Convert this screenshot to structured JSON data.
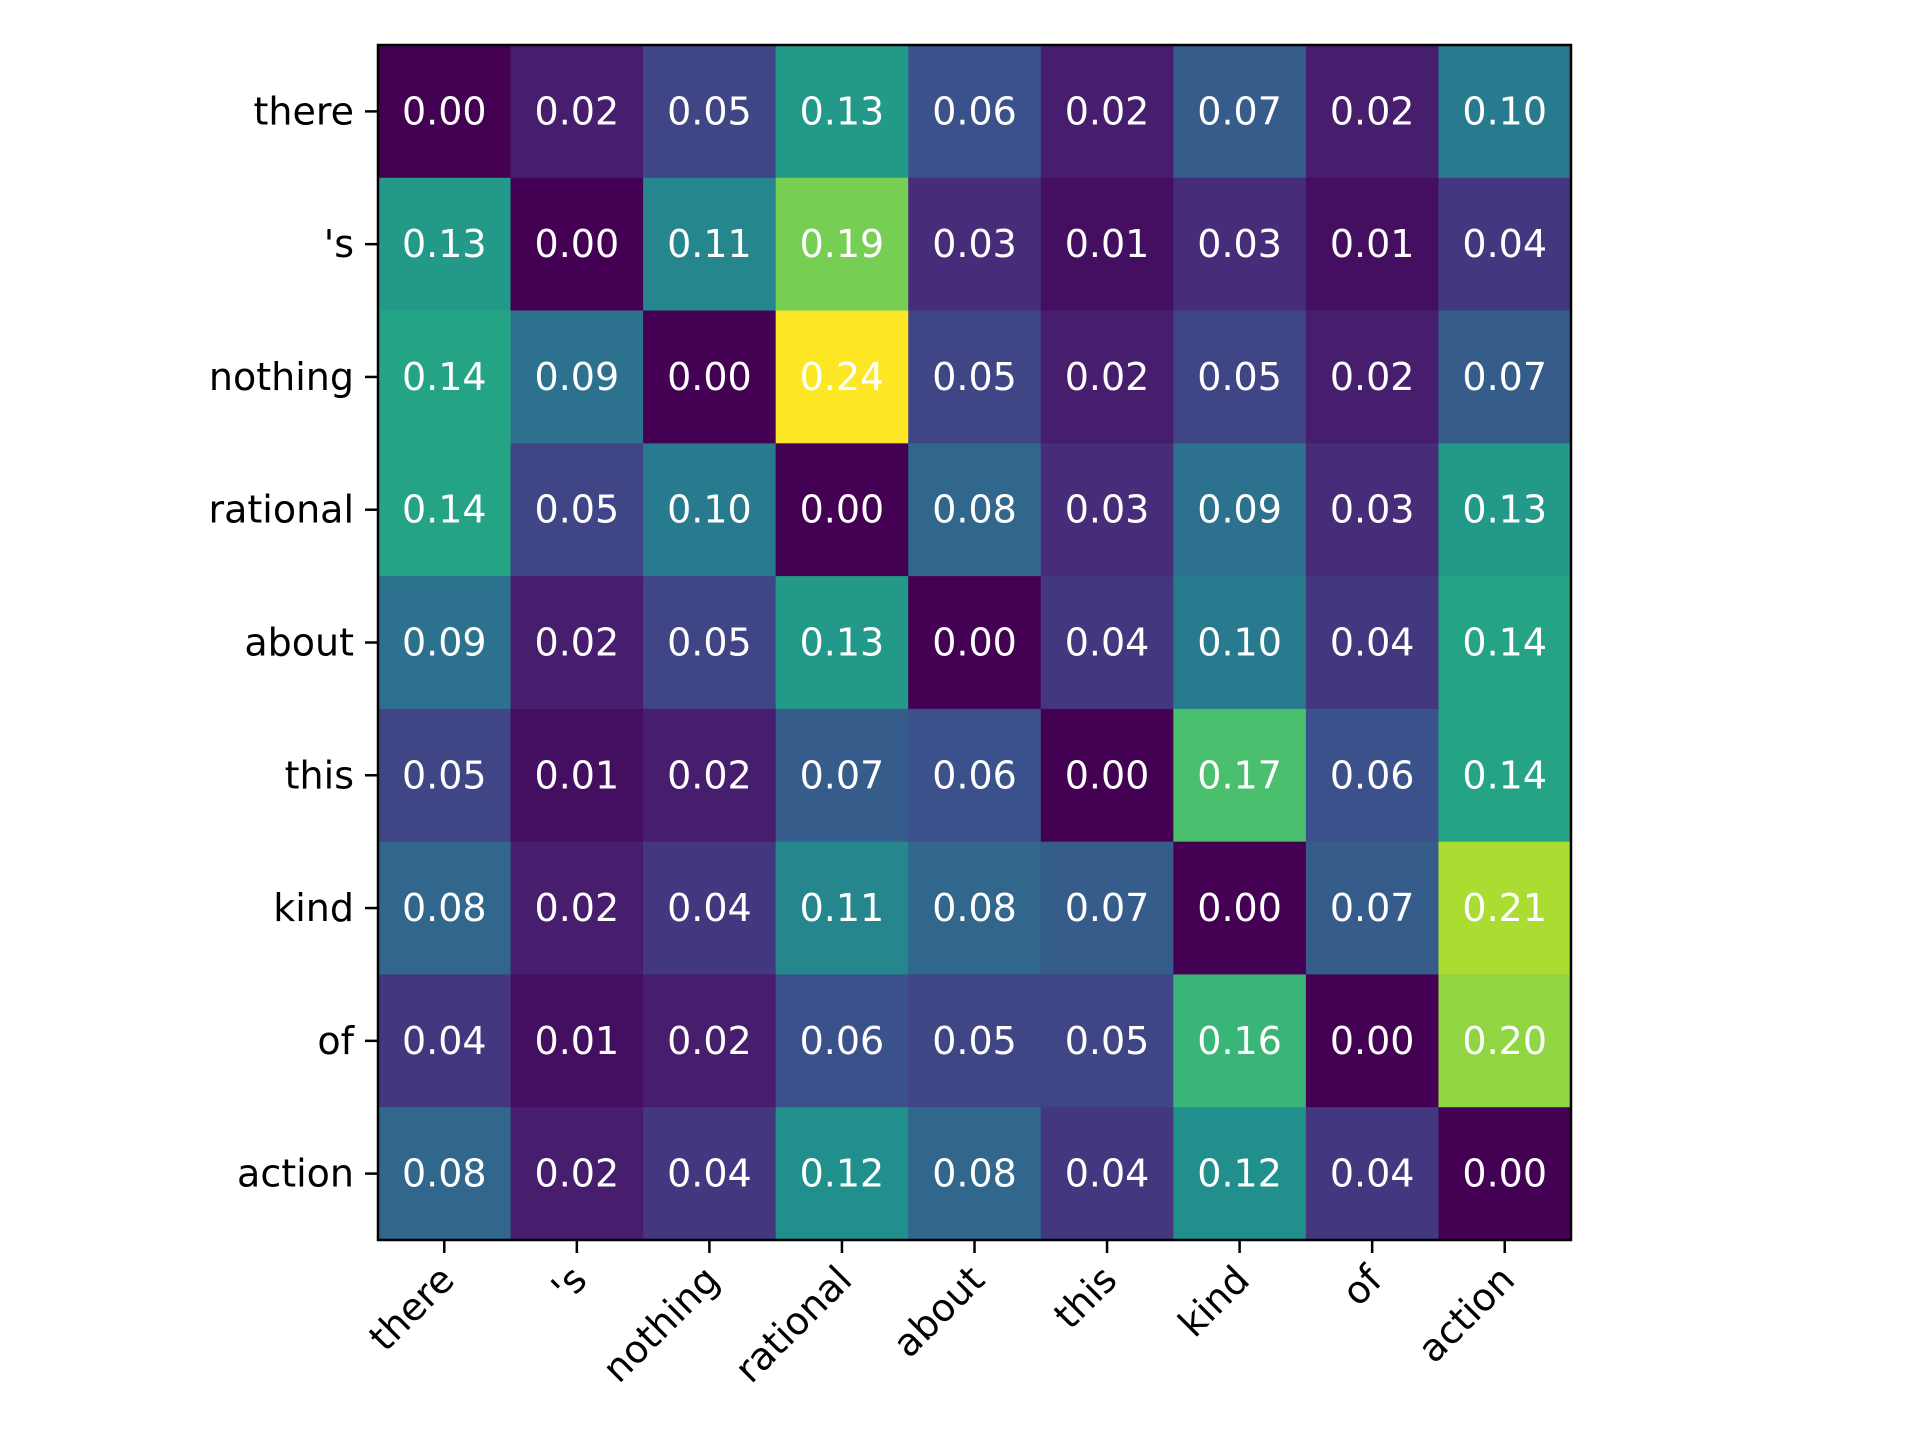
{
  "chart_data": {
    "type": "heatmap",
    "title": "",
    "xlabel": "",
    "ylabel": "",
    "colormap": "viridis",
    "vmin": 0.0,
    "vmax": 0.24,
    "grid": false,
    "x_categories": [
      "there",
      "'s",
      "nothing",
      "rational",
      "about",
      "this",
      "kind",
      "of",
      "action"
    ],
    "y_categories": [
      "there",
      "'s",
      "nothing",
      "rational",
      "about",
      "this",
      "kind",
      "of",
      "action"
    ],
    "values": [
      [
        0.0,
        0.02,
        0.05,
        0.13,
        0.06,
        0.02,
        0.07,
        0.02,
        0.1
      ],
      [
        0.13,
        0.0,
        0.11,
        0.19,
        0.03,
        0.01,
        0.03,
        0.01,
        0.04
      ],
      [
        0.14,
        0.09,
        0.0,
        0.24,
        0.05,
        0.02,
        0.05,
        0.02,
        0.07
      ],
      [
        0.14,
        0.05,
        0.1,
        0.0,
        0.08,
        0.03,
        0.09,
        0.03,
        0.13
      ],
      [
        0.09,
        0.02,
        0.05,
        0.13,
        0.0,
        0.04,
        0.1,
        0.04,
        0.14
      ],
      [
        0.05,
        0.01,
        0.02,
        0.07,
        0.06,
        0.0,
        0.17,
        0.06,
        0.14
      ],
      [
        0.08,
        0.02,
        0.04,
        0.11,
        0.08,
        0.07,
        0.0,
        0.07,
        0.21
      ],
      [
        0.04,
        0.01,
        0.02,
        0.06,
        0.05,
        0.05,
        0.16,
        0.0,
        0.2
      ],
      [
        0.08,
        0.02,
        0.04,
        0.12,
        0.08,
        0.04,
        0.12,
        0.04,
        0.0
      ]
    ]
  }
}
